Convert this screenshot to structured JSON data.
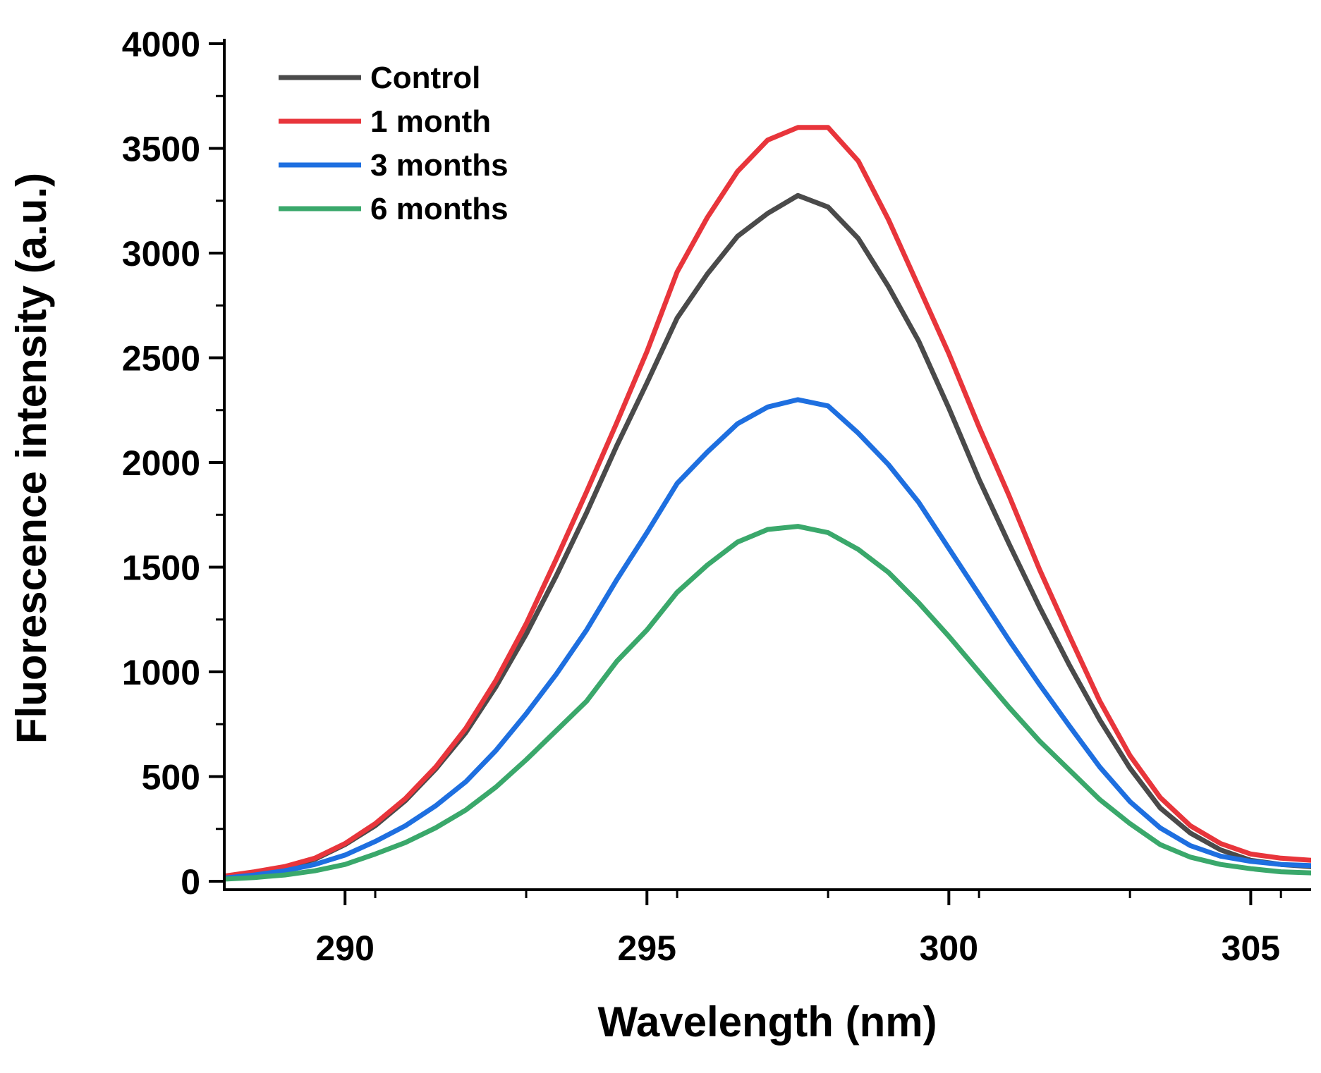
{
  "chart_data": {
    "type": "line",
    "title": "",
    "xlabel": "Wavelength (nm)",
    "ylabel": "Fluorescence intensity (a.u.)",
    "xlim": [
      288,
      306
    ],
    "ylim": [
      0,
      4000
    ],
    "xticks": [
      290,
      295,
      300,
      305
    ],
    "xtick_labels": [
      "290",
      "295",
      "300",
      "305"
    ],
    "yticks": [
      0,
      500,
      1000,
      1500,
      2000,
      2500,
      3000,
      3500,
      4000
    ],
    "ytick_labels": [
      "0",
      "500",
      "1000",
      "1500",
      "2000",
      "2500",
      "3000",
      "3500",
      "4000"
    ],
    "grid": false,
    "legend_position": "top-left",
    "x": [
      288,
      288.5,
      289,
      289.5,
      290,
      290.5,
      291,
      291.5,
      292,
      292.5,
      293,
      293.5,
      294,
      294.5,
      295,
      295.5,
      296,
      296.5,
      297,
      297.5,
      298,
      298.5,
      299,
      299.5,
      300,
      300.5,
      301,
      301.5,
      302,
      302.5,
      303,
      303.5,
      304,
      304.5,
      305,
      305.5,
      306
    ],
    "series": [
      {
        "name": "Control",
        "color": "#4a4a4a",
        "values": [
          20,
          40,
          65,
          105,
          175,
          265,
          385,
          535,
          710,
          930,
          1180,
          1460,
          1760,
          2080,
          2380,
          2690,
          2900,
          3080,
          3190,
          3275,
          3220,
          3070,
          2840,
          2580,
          2260,
          1920,
          1610,
          1310,
          1030,
          770,
          540,
          350,
          230,
          150,
          100,
          80,
          70
        ]
      },
      {
        "name": "1 month",
        "color": "#e8353b",
        "values": [
          25,
          45,
          70,
          110,
          180,
          275,
          395,
          545,
          730,
          960,
          1230,
          1540,
          1860,
          2190,
          2530,
          2910,
          3170,
          3390,
          3540,
          3600,
          3600,
          3440,
          3160,
          2840,
          2520,
          2170,
          1840,
          1490,
          1170,
          860,
          600,
          400,
          265,
          180,
          130,
          110,
          100
        ]
      },
      {
        "name": "3 months",
        "color": "#1e6fe0",
        "values": [
          15,
          30,
          50,
          80,
          125,
          190,
          265,
          360,
          475,
          625,
          800,
          990,
          1200,
          1440,
          1665,
          1900,
          2050,
          2185,
          2265,
          2300,
          2270,
          2140,
          1990,
          1810,
          1590,
          1370,
          1150,
          940,
          740,
          545,
          380,
          255,
          170,
          120,
          95,
          80,
          75
        ]
      },
      {
        "name": "6 months",
        "color": "#3aa86b",
        "values": [
          10,
          18,
          30,
          50,
          80,
          130,
          185,
          255,
          340,
          450,
          580,
          720,
          860,
          1050,
          1200,
          1380,
          1510,
          1620,
          1680,
          1695,
          1665,
          1585,
          1475,
          1330,
          1170,
          1000,
          830,
          670,
          530,
          390,
          275,
          175,
          115,
          80,
          60,
          45,
          40
        ]
      }
    ]
  }
}
